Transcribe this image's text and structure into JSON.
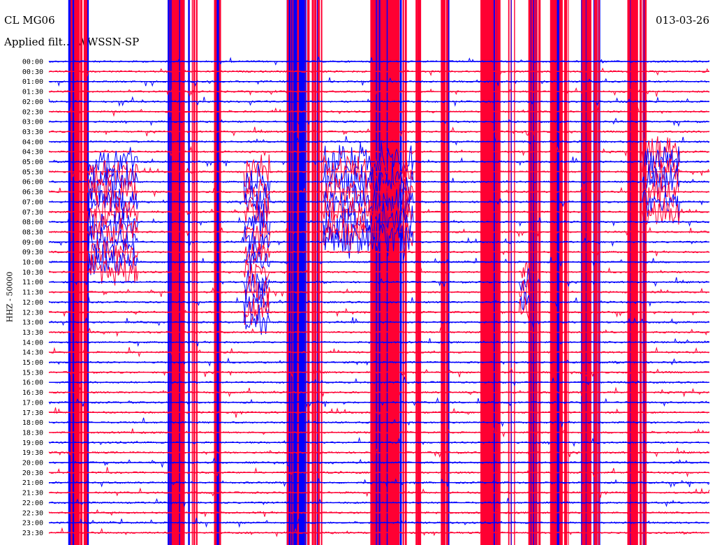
{
  "header": {
    "station": "CL MG06",
    "filter_label": "Applied filt… WWSSN-SP",
    "date": "013-03-26"
  },
  "axis": {
    "ylabel": "HHZ - 50000"
  },
  "colors": {
    "odd_trace": "#0000ff",
    "even_trace": "#ff0033",
    "text": "#000000"
  },
  "chart_data": {
    "type": "line",
    "title": "",
    "xlabel": "",
    "ylabel": "HHZ - 50000",
    "x_range_min": [
      0,
      30
    ],
    "row_labels": [
      "00:00",
      "00:30",
      "01:00",
      "01:30",
      "02:00",
      "02:30",
      "03:00",
      "03:30",
      "04:00",
      "04:30",
      "05:00",
      "05:30",
      "06:00",
      "06:30",
      "07:00",
      "07:30",
      "08:00",
      "08:30",
      "09:00",
      "09:30",
      "10:00",
      "10:30",
      "11:00",
      "11:30",
      "12:00",
      "12:30",
      "13:00",
      "13:30",
      "14:00",
      "14:30",
      "15:00",
      "15:30",
      "16:00",
      "16:30",
      "17:00",
      "17:30",
      "18:00",
      "18:30",
      "19:00",
      "19:30",
      "20:00",
      "20:30",
      "21:00",
      "21:30",
      "22:00",
      "22:30",
      "23:00",
      "23:30"
    ],
    "trace_colors": [
      "#0000ff",
      "#ff0033"
    ],
    "saturated_bursts_min": [
      [
        0.9,
        1.8
      ],
      [
        5.4,
        6.8
      ],
      [
        7.5,
        7.9
      ],
      [
        10.8,
        12.4
      ],
      [
        14.6,
        16.9
      ],
      [
        17.8,
        18.2
      ],
      [
        19.6,
        21.2
      ],
      [
        21.8,
        22.4
      ],
      [
        22.8,
        23.6
      ],
      [
        24.2,
        25.0
      ],
      [
        26.3,
        27.1
      ]
    ],
    "dense_event_windows": [
      {
        "rows": [
          10,
          21
        ],
        "x_min": [
          1.8,
          4.0
        ],
        "color": "#0000ff"
      },
      {
        "rows": [
          11,
          26
        ],
        "x_min": [
          8.9,
          10.0
        ],
        "color": "#0000ff"
      },
      {
        "rows": [
          10,
          18
        ],
        "x_min": [
          12.5,
          16.5
        ],
        "color": "#ff0033"
      },
      {
        "rows": [
          21,
          25
        ],
        "x_min": [
          21.4,
          21.8
        ],
        "color": "#0000ff"
      },
      {
        "rows": [
          9,
          15
        ],
        "x_min": [
          27.0,
          28.6
        ],
        "color": "#0000ff"
      }
    ]
  }
}
